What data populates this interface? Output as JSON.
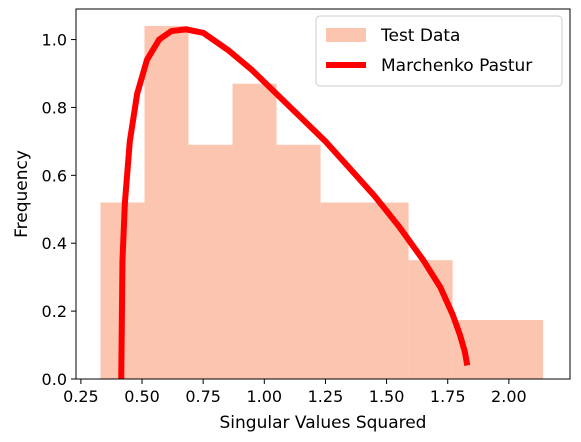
{
  "chart_data": {
    "type": "bar",
    "title": "",
    "xlabel": "Singular Values Squared",
    "ylabel": "Frequency",
    "xlim": [
      0.23,
      2.25
    ],
    "ylim": [
      0.0,
      1.09
    ],
    "x_ticks": [
      0.25,
      0.5,
      0.75,
      1.0,
      1.25,
      1.5,
      1.75,
      2.0
    ],
    "x_tick_labels": [
      "0.25",
      "0.50",
      "0.75",
      "1.00",
      "1.25",
      "1.50",
      "1.75",
      "2.00"
    ],
    "y_ticks": [
      0.0,
      0.2,
      0.4,
      0.6,
      0.8,
      1.0
    ],
    "y_tick_labels": [
      "0.0",
      "0.2",
      "0.4",
      "0.6",
      "0.8",
      "1.0"
    ],
    "grid": false,
    "legend_position": "top-right",
    "histogram": {
      "name": "Test Data",
      "color": "#fcc5b0",
      "bin_edges": [
        0.33,
        0.51,
        0.69,
        0.87,
        1.05,
        1.23,
        1.41,
        1.59,
        1.77,
        2.14
      ],
      "values": [
        0.52,
        1.04,
        0.69,
        0.87,
        0.69,
        0.52,
        0.52,
        0.35,
        0.174
      ]
    },
    "curve": {
      "name": "Marchenko Pastur",
      "color": "#ff0000",
      "x": [
        0.415,
        0.42,
        0.43,
        0.45,
        0.48,
        0.52,
        0.57,
        0.62,
        0.68,
        0.75,
        0.85,
        0.95,
        1.05,
        1.15,
        1.25,
        1.35,
        1.45,
        1.55,
        1.65,
        1.72,
        1.77,
        1.8,
        1.82,
        1.83
      ],
      "y": [
        0.0,
        0.35,
        0.52,
        0.7,
        0.84,
        0.94,
        1.0,
        1.025,
        1.03,
        1.02,
        0.97,
        0.91,
        0.84,
        0.77,
        0.7,
        0.62,
        0.54,
        0.45,
        0.35,
        0.27,
        0.19,
        0.13,
        0.08,
        0.04
      ]
    }
  }
}
